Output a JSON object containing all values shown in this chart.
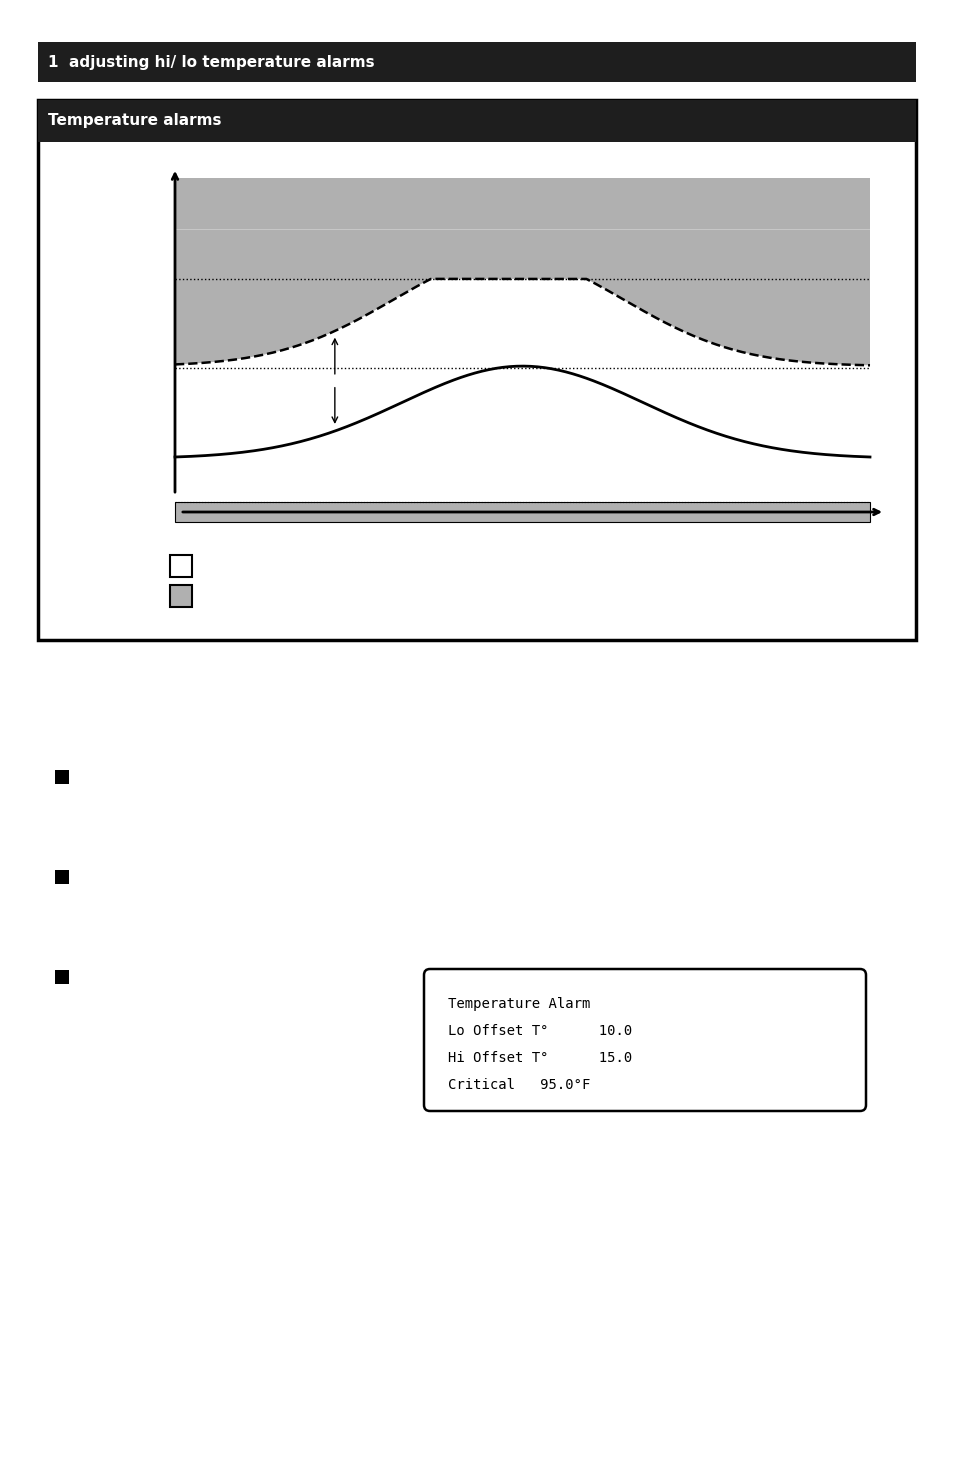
{
  "page_bg": "#ffffff",
  "dark_bar_color": "#1e1e1e",
  "header_text": "1  adjusting hi/ lo temperature alarms",
  "header_text_color": "#ffffff",
  "section_text": "Temperature alarms",
  "section_text_color": "#ffffff",
  "diagram_border_color": "#000000",
  "gray_color": "#b0b0b0",
  "alarm_box_text_line1": "Temperature Alarm",
  "alarm_box_text_line2": "Lo Offset T°      10.0",
  "alarm_box_text_line3": "Hi Offset T°      15.0",
  "alarm_box_text_line4": "Critical   95.0°F"
}
